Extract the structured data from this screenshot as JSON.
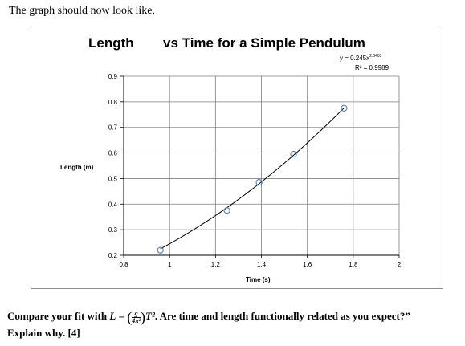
{
  "intro_text": "The graph should now look like,",
  "chart_data": {
    "type": "scatter",
    "title_part1": "Length",
    "title_part2": "vs Time for a Simple Pendulum",
    "xlabel": "Time (s)",
    "ylabel": "Length (m)",
    "xlim": [
      0.8,
      2.0
    ],
    "ylim": [
      0.2,
      0.9
    ],
    "x_ticks": [
      "0.8",
      "1",
      "1.2",
      "1.4",
      "1.6",
      "1.8",
      "2"
    ],
    "y_ticks": [
      "0.2",
      "0.3",
      "0.4",
      "0.5",
      "0.6",
      "0.7",
      "0.8",
      "0.9"
    ],
    "x_tick_values": [
      0.8,
      1.0,
      1.2,
      1.4,
      1.6,
      1.8,
      2.0
    ],
    "y_tick_values": [
      0.2,
      0.3,
      0.4,
      0.5,
      0.6,
      0.7,
      0.8,
      0.9
    ],
    "points": [
      {
        "x": 0.96,
        "y": 0.22
      },
      {
        "x": 1.25,
        "y": 0.375
      },
      {
        "x": 1.39,
        "y": 0.485
      },
      {
        "x": 1.54,
        "y": 0.595
      },
      {
        "x": 1.76,
        "y": 0.775
      }
    ],
    "trendline": {
      "type": "power",
      "coefficient": 0.245,
      "exponent": 2.0403,
      "x_range": [
        0.96,
        1.76
      ],
      "equation_prefix": "y = 0.245x",
      "equation_exponent": "2.0403",
      "r2_label": "R² = 0.9989"
    },
    "grid": true,
    "marker_color": "#4f81bd",
    "grid_color": "#7f7f7f",
    "line_color": "#000000"
  },
  "question": {
    "part1": "Compare your fit with",
    "L": "L",
    "equals": "=",
    "frac_num": "g",
    "frac_den": "4π²",
    "T2": "T²",
    "part2": ". Are time and length functionally related as you expect?”",
    "line2": "Explain why. [4]"
  }
}
